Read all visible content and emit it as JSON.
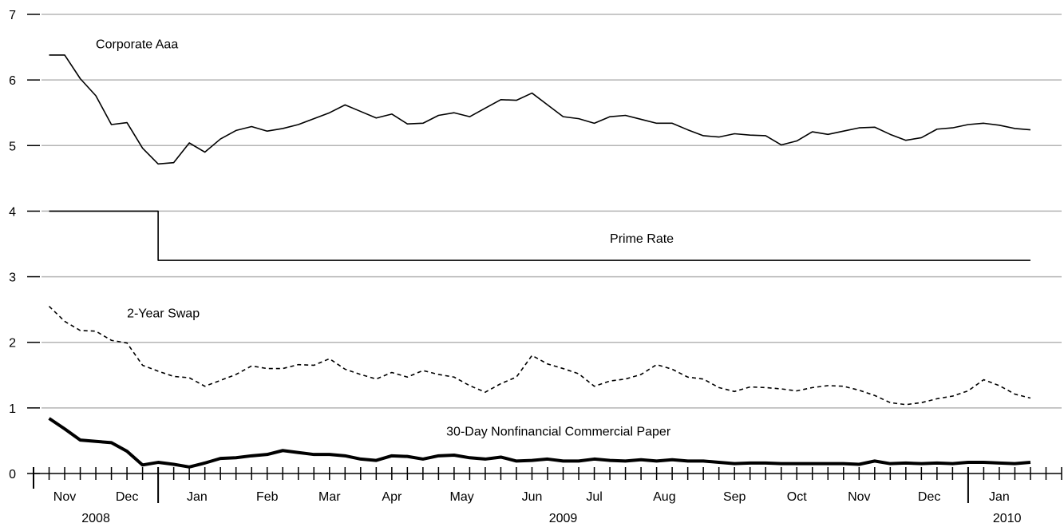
{
  "chart_data": {
    "type": "line",
    "title": "",
    "xlabel": "",
    "ylabel": "",
    "ylim": [
      0,
      7
    ],
    "yticks": [
      "0",
      "1",
      "2",
      "3",
      "4",
      "5",
      "6",
      "7"
    ],
    "grid": true,
    "x_weeks": 66,
    "month_labels": [
      {
        "label": "Nov",
        "start": 0,
        "end": 4
      },
      {
        "label": "Dec",
        "start": 4,
        "end": 8
      },
      {
        "label": "Jan",
        "start": 8,
        "end": 13
      },
      {
        "label": "Feb",
        "start": 13,
        "end": 17
      },
      {
        "label": "Mar",
        "start": 17,
        "end": 21
      },
      {
        "label": "Apr",
        "start": 21,
        "end": 25
      },
      {
        "label": "May",
        "start": 25,
        "end": 30
      },
      {
        "label": "Jun",
        "start": 30,
        "end": 34
      },
      {
        "label": "Jul",
        "start": 34,
        "end": 38
      },
      {
        "label": "Aug",
        "start": 38,
        "end": 43
      },
      {
        "label": "Sep",
        "start": 43,
        "end": 47
      },
      {
        "label": "Oct",
        "start": 47,
        "end": 51
      },
      {
        "label": "Nov",
        "start": 51,
        "end": 55
      },
      {
        "label": "Dec",
        "start": 55,
        "end": 60
      },
      {
        "label": "Jan",
        "start": 60,
        "end": 64
      }
    ],
    "year_labels": [
      {
        "label": "2008",
        "start": 0,
        "end": 8
      },
      {
        "label": "2009",
        "start": 8,
        "end": 60
      },
      {
        "label": "2010",
        "start": 60,
        "end": 65
      }
    ],
    "series": [
      {
        "name": "Corporate Aaa",
        "style": "solid",
        "label_at": {
          "x": 3,
          "y": 6.48
        },
        "values": [
          6.38,
          6.38,
          6.02,
          5.76,
          5.32,
          5.35,
          4.96,
          4.72,
          4.74,
          5.04,
          4.9,
          5.1,
          5.23,
          5.29,
          5.22,
          5.26,
          5.32,
          5.41,
          5.5,
          5.62,
          5.52,
          5.42,
          5.48,
          5.33,
          5.34,
          5.46,
          5.5,
          5.44,
          5.57,
          5.7,
          5.69,
          5.8,
          5.62,
          5.44,
          5.41,
          5.34,
          5.44,
          5.46,
          5.4,
          5.34,
          5.34,
          5.24,
          5.15,
          5.13,
          5.18,
          5.16,
          5.15,
          5.01,
          5.07,
          5.21,
          5.17,
          5.22,
          5.27,
          5.28,
          5.17,
          5.08,
          5.12,
          5.25,
          5.27,
          5.32,
          5.34,
          5.31,
          5.26,
          5.24
        ]
      },
      {
        "name": "Prime Rate",
        "style": "step",
        "label_at": {
          "x": 36,
          "y": 3.52
        },
        "values": [
          4.0,
          4.0,
          4.0,
          4.0,
          4.0,
          4.0,
          4.0,
          3.25,
          3.25,
          3.25,
          3.25,
          3.25,
          3.25,
          3.25,
          3.25,
          3.25,
          3.25,
          3.25,
          3.25,
          3.25,
          3.25,
          3.25,
          3.25,
          3.25,
          3.25,
          3.25,
          3.25,
          3.25,
          3.25,
          3.25,
          3.25,
          3.25,
          3.25,
          3.25,
          3.25,
          3.25,
          3.25,
          3.25,
          3.25,
          3.25,
          3.25,
          3.25,
          3.25,
          3.25,
          3.25,
          3.25,
          3.25,
          3.25,
          3.25,
          3.25,
          3.25,
          3.25,
          3.25,
          3.25,
          3.25,
          3.25,
          3.25,
          3.25,
          3.25,
          3.25,
          3.25,
          3.25,
          3.25,
          3.25
        ]
      },
      {
        "name": "2-Year Swap",
        "style": "dashed",
        "label_at": {
          "x": 5,
          "y": 2.38
        },
        "values": [
          2.55,
          2.32,
          2.18,
          2.17,
          2.03,
          1.99,
          1.65,
          1.56,
          1.48,
          1.46,
          1.33,
          1.42,
          1.51,
          1.64,
          1.6,
          1.6,
          1.66,
          1.65,
          1.75,
          1.59,
          1.51,
          1.44,
          1.54,
          1.47,
          1.57,
          1.51,
          1.47,
          1.34,
          1.24,
          1.37,
          1.47,
          1.8,
          1.67,
          1.6,
          1.52,
          1.33,
          1.41,
          1.44,
          1.51,
          1.66,
          1.59,
          1.47,
          1.44,
          1.31,
          1.25,
          1.32,
          1.31,
          1.29,
          1.26,
          1.31,
          1.34,
          1.33,
          1.27,
          1.19,
          1.08,
          1.05,
          1.08,
          1.14,
          1.18,
          1.26,
          1.43,
          1.34,
          1.21,
          1.15
        ]
      },
      {
        "name": "30-Day Nonfinancial Commercial Paper",
        "style": "bold",
        "label_at": {
          "x": 25.5,
          "y": 0.58
        },
        "values": [
          0.84,
          0.68,
          0.51,
          0.49,
          0.47,
          0.34,
          0.13,
          0.17,
          0.14,
          0.1,
          0.16,
          0.23,
          0.24,
          0.27,
          0.29,
          0.35,
          0.32,
          0.29,
          0.29,
          0.27,
          0.22,
          0.2,
          0.27,
          0.26,
          0.22,
          0.27,
          0.28,
          0.24,
          0.22,
          0.25,
          0.19,
          0.2,
          0.22,
          0.19,
          0.19,
          0.22,
          0.2,
          0.19,
          0.21,
          0.19,
          0.21,
          0.19,
          0.19,
          0.17,
          0.15,
          0.16,
          0.16,
          0.15,
          0.15,
          0.15,
          0.15,
          0.15,
          0.14,
          0.19,
          0.15,
          0.16,
          0.15,
          0.16,
          0.15,
          0.17,
          0.17,
          0.16,
          0.15,
          0.17
        ]
      }
    ]
  }
}
